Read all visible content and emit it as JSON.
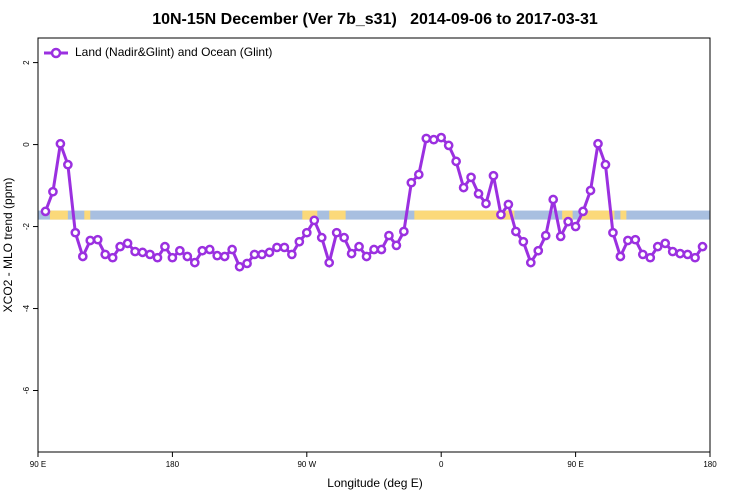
{
  "chart_data": {
    "type": "line",
    "title": "10N-15N December (Ver 7b_s31)   2014-09-06 to 2017-03-31",
    "xlabel": "Longitude (deg E)",
    "ylabel": "XCO2 - MLO trend (ppm)",
    "xlim": [
      90,
      540
    ],
    "ylim": [
      -7.5,
      2.6
    ],
    "xticks": [
      {
        "value": 90,
        "label": "90 E"
      },
      180,
      {
        "value": 270,
        "label": "90 W"
      },
      {
        "value": 360,
        "label": "0"
      },
      {
        "value": 450,
        "label": "90 E"
      },
      {
        "value": 540,
        "label": "180"
      }
    ],
    "yticks": [
      -6,
      -4,
      -2,
      0,
      2
    ],
    "legend": "top-left",
    "band": {
      "ylim": [
        -1.61,
        -1.83
      ],
      "color": "#a8bfe0",
      "land_color": "#fbd97a",
      "land": [
        [
          98,
          110
        ],
        [
          121,
          125
        ],
        [
          267,
          277
        ],
        [
          285,
          296
        ],
        [
          342,
          409
        ],
        [
          441,
          448
        ],
        [
          453,
          476
        ],
        [
          480,
          484
        ]
      ]
    },
    "x_start": 95,
    "x_step": 5,
    "series": [
      {
        "name": "Land (Nadir&Glint) and Ocean (Glint)",
        "color": "#9b30e0",
        "values": [
          -1.63,
          -1.15,
          0.02,
          -0.49,
          -2.15,
          -2.73,
          -2.34,
          -2.32,
          -2.68,
          -2.76,
          -2.49,
          -2.41,
          -2.61,
          -2.63,
          -2.68,
          -2.76,
          -2.49,
          -2.76,
          -2.59,
          -2.73,
          -2.88,
          -2.59,
          -2.56,
          -2.71,
          -2.73,
          -2.56,
          -2.98,
          -2.9,
          -2.68,
          -2.68,
          -2.63,
          -2.51,
          -2.51,
          -2.68,
          -2.37,
          -2.15,
          -1.85,
          -2.27,
          -2.88,
          -2.15,
          -2.27,
          -2.66,
          -2.49,
          -2.73,
          -2.56,
          -2.56,
          -2.22,
          -2.46,
          -2.12,
          -0.93,
          -0.73,
          0.15,
          0.12,
          0.17,
          -0.02,
          -0.41,
          -1.05,
          -0.8,
          -1.2,
          -1.44,
          -0.76,
          -1.71,
          -1.46,
          -2.12,
          -2.37,
          -2.88,
          -2.59,
          -2.22,
          -1.34,
          -2.24,
          -1.88,
          -2.0,
          -1.63,
          -1.12,
          0.02,
          -0.49,
          -2.15,
          -2.73,
          -2.34,
          -2.32,
          -2.68,
          -2.76,
          -2.49,
          -2.41,
          -2.61,
          -2.66,
          -2.68,
          -2.76,
          -2.49
        ]
      }
    ]
  }
}
